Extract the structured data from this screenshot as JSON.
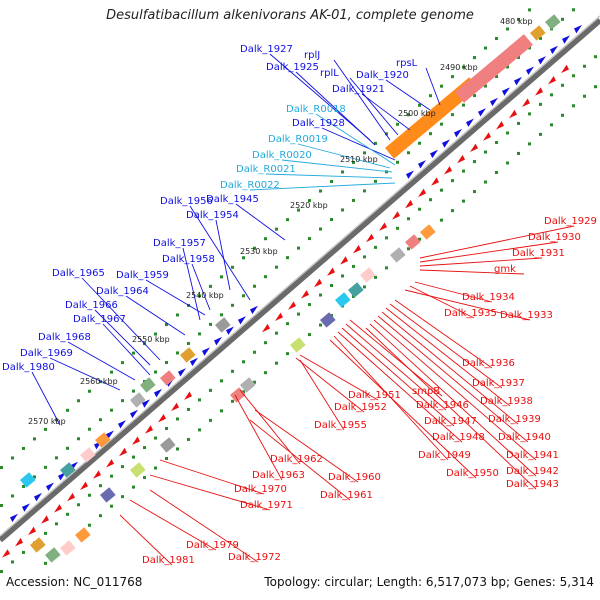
{
  "header": {
    "title": "Desulfatibacillum alkenivorans AK-01, complete genome"
  },
  "footer": {
    "accession": "Accession: NC_011768",
    "summary": "Topology: circular; Length: 6,517,073 bp; Genes: 5,314"
  },
  "colors": {
    "forward_gene": "#1010e0",
    "reverse_gene": "#e81010",
    "rna_label": "#22aadd",
    "backbone": "#7a7a7a",
    "gc_dots": "#2a8a2a"
  },
  "ticks": [
    {
      "label": "480 kbp"
    },
    {
      "label": "2490 kbp"
    },
    {
      "label": "2500 kbp"
    },
    {
      "label": "2510 kbp"
    },
    {
      "label": "2520 kbp"
    },
    {
      "label": "2530 kbp"
    },
    {
      "label": "2540 kbp"
    },
    {
      "label": "2550 kbp"
    },
    {
      "label": "2560 kbp"
    },
    {
      "label": "2570 kbp"
    }
  ],
  "labels_blue": [
    "Dalk_1927",
    "Dalk_1925",
    "Dalk_1920",
    "Dalk_1921",
    "Dalk_1928",
    "Dalk_1956",
    "Dalk_1945",
    "Dalk_1954",
    "Dalk_1957",
    "Dalk_1958",
    "Dalk_1965",
    "Dalk_1959",
    "Dalk_1964",
    "Dalk_1966",
    "Dalk_1967",
    "Dalk_1968",
    "Dalk_1969",
    "Dalk_1980"
  ],
  "labels_gene_names": [
    "rplJ",
    "rplL",
    "rpsL"
  ],
  "labels_rna": [
    "Dalk_R0018",
    "Dalk_R0019",
    "Dalk_R0020",
    "Dalk_R0021",
    "Dalk_R0022"
  ],
  "labels_red": [
    "Dalk_1929",
    "Dalk_1930",
    "Dalk_1931",
    "gmk",
    "Dalk_1934",
    "Dalk_1935",
    "Dalk_1933",
    "Dalk_1936",
    "Dalk_1937",
    "Dalk_1938",
    "Dalk_1939",
    "Dalk_1940",
    "Dalk_1941",
    "Dalk_1942",
    "Dalk_1943",
    "smpB",
    "Dalk_1946",
    "Dalk_1947",
    "Dalk_1948",
    "Dalk_1949",
    "Dalk_1950",
    "Dalk_1951",
    "Dalk_1952",
    "Dalk_1955",
    "Dalk_1962",
    "Dalk_1963",
    "Dalk_1960",
    "Dalk_1961",
    "Dalk_1970",
    "Dalk_1971",
    "Dalk_1979",
    "Dalk_1972",
    "Dalk_1981"
  ]
}
